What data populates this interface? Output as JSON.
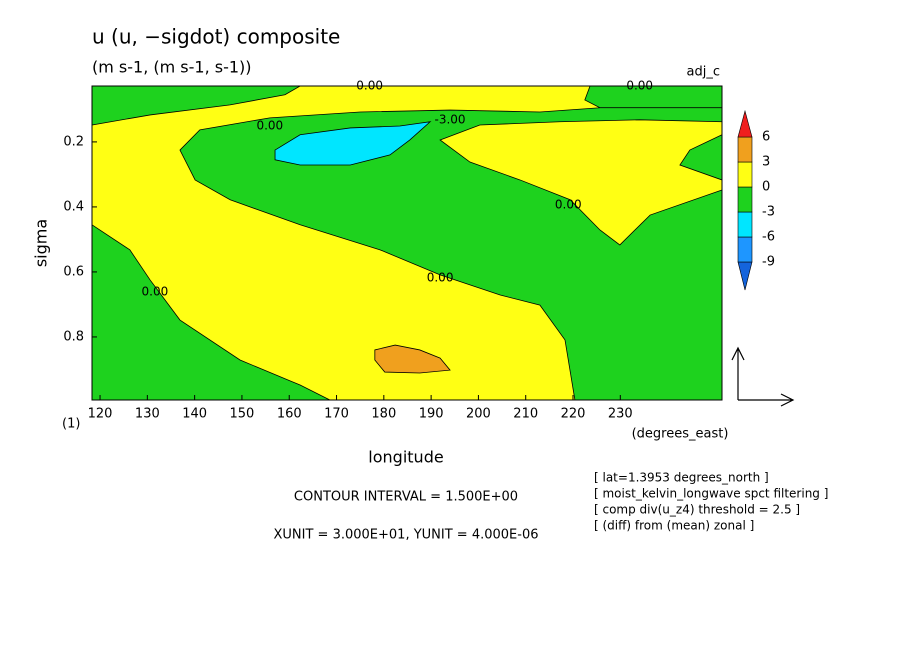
{
  "chart_data": {
    "type": "contour",
    "title": "u (u, −sigdot) composite",
    "subtitle": "(m s-1, (m s-1, s-1))",
    "tag": "adj_c",
    "ylabel": "sigma",
    "ylabel_note": "(1)",
    "xlabel": "longitude",
    "xunit": "(degrees_east)",
    "xlim": [
      118.3,
      251.5
    ],
    "ylim": [
      0.028,
      0.994
    ],
    "y_inverted": true,
    "xticks": [
      120,
      130,
      140,
      150,
      160,
      170,
      180,
      190,
      200,
      210,
      220,
      230
    ],
    "yticks": [
      0.2,
      0.4,
      0.6,
      0.8
    ],
    "colorbar": {
      "levels": [
        -9,
        -6,
        -3,
        0,
        3,
        6
      ],
      "colors": [
        "#1464dc",
        "#1e96ff",
        "#00e6ff",
        "#1ed21e",
        "#ffff14",
        "#f0a01e",
        "#f01e1e"
      ]
    },
    "background_level": 0,
    "regions": [
      {
        "level": -3,
        "points": [
          [
            118.3,
            0.028
          ],
          [
            162.3,
            0.028
          ],
          [
            159.1,
            0.055
          ],
          [
            147.5,
            0.086
          ],
          [
            130.6,
            0.117
          ],
          [
            118.3,
            0.148
          ]
        ]
      },
      {
        "level": -3,
        "points": [
          [
            223.6,
            0.028
          ],
          [
            251.5,
            0.028
          ],
          [
            251.5,
            0.095
          ],
          [
            225.7,
            0.095
          ],
          [
            222.5,
            0.071
          ]
        ]
      },
      {
        "level": -3,
        "points": [
          [
            136.9,
            0.225
          ],
          [
            141.1,
            0.163
          ],
          [
            155.9,
            0.126
          ],
          [
            175,
            0.108
          ],
          [
            194,
            0.102
          ],
          [
            213,
            0.108
          ],
          [
            225.7,
            0.095
          ],
          [
            251.5,
            0.095
          ],
          [
            251.5,
            0.994
          ],
          [
            220.4,
            0.994
          ],
          [
            218.3,
            0.809
          ],
          [
            213,
            0.702
          ],
          [
            204.6,
            0.671
          ],
          [
            191.9,
            0.609
          ],
          [
            179.2,
            0.532
          ],
          [
            162.3,
            0.455
          ],
          [
            147.5,
            0.378
          ],
          [
            140.1,
            0.317
          ]
        ]
      },
      {
        "level": 0,
        "points": [
          [
            191.9,
            0.194
          ],
          [
            200.3,
            0.148
          ],
          [
            217.2,
            0.138
          ],
          [
            234.1,
            0.132
          ],
          [
            251.5,
            0.138
          ],
          [
            251.5,
            0.178
          ],
          [
            244.7,
            0.225
          ],
          [
            242.6,
            0.271
          ],
          [
            251.5,
            0.317
          ],
          [
            251.5,
            0.348
          ],
          [
            236.3,
            0.425
          ],
          [
            229.9,
            0.517
          ],
          [
            225.7,
            0.471
          ],
          [
            219.4,
            0.378
          ],
          [
            208.8,
            0.317
          ],
          [
            198.2,
            0.262
          ]
        ]
      },
      {
        "level": -3,
        "points": [
          [
            118.3,
            0.455
          ],
          [
            126.3,
            0.532
          ],
          [
            130.6,
            0.625
          ],
          [
            136.9,
            0.748
          ],
          [
            149.6,
            0.871
          ],
          [
            162.3,
            0.948
          ],
          [
            168.6,
            0.994
          ],
          [
            118.3,
            0.994
          ]
        ]
      },
      {
        "level": -6,
        "points": [
          [
            157,
            0.225
          ],
          [
            162.3,
            0.178
          ],
          [
            172.9,
            0.157
          ],
          [
            183.4,
            0.151
          ],
          [
            189.8,
            0.138
          ],
          [
            185.5,
            0.194
          ],
          [
            181.3,
            0.24
          ],
          [
            172.9,
            0.271
          ],
          [
            162.3,
            0.271
          ],
          [
            157,
            0.255
          ]
        ]
      },
      {
        "level": 3,
        "points": [
          [
            178.1,
            0.84
          ],
          [
            182.4,
            0.825
          ],
          [
            187.6,
            0.84
          ],
          [
            191.9,
            0.865
          ],
          [
            194,
            0.902
          ],
          [
            187.6,
            0.911
          ],
          [
            180.2,
            0.908
          ],
          [
            178.1,
            0.871
          ]
        ]
      }
    ],
    "contour_labels": [
      {
        "text": "0.00",
        "lon": 177,
        "sigma": 0.028
      },
      {
        "text": "0.00",
        "lon": 234.1,
        "sigma": 0.028
      },
      {
        "text": "0.00",
        "lon": 155.9,
        "sigma": 0.151
      },
      {
        "text": "-3.00",
        "lon": 194,
        "sigma": 0.132
      },
      {
        "text": "0.00",
        "lon": 219,
        "sigma": 0.394
      },
      {
        "text": "0.00",
        "lon": 191.9,
        "sigma": 0.618
      },
      {
        "text": "0.00",
        "lon": 131.6,
        "sigma": 0.662
      }
    ],
    "contour_interval": "CONTOUR INTERVAL = 1.500E+00",
    "vector_units": "XUNIT = 3.000E+01, YUNIT = 4.000E-06",
    "notes": [
      "[ lat=1.3953 degrees_north ]",
      "[ moist_kelvin_longwave spct filtering ]",
      "[ comp div(u_z4) threshold = 2.5 ]",
      "[ (diff) from (mean) zonal ]"
    ]
  }
}
